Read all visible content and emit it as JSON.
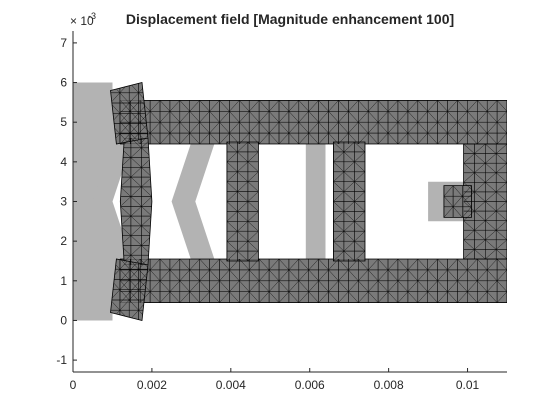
{
  "chart_data": {
    "type": "fem-mesh",
    "title": "Displacement field [Magnitude enhancement 100]",
    "x_ticks": [
      "0",
      "0.002",
      "0.004",
      "0.006",
      "0.008",
      "0.01"
    ],
    "y_ticks": [
      "-1",
      "0",
      "1",
      "2",
      "3",
      "4",
      "5",
      "6",
      "7"
    ],
    "y_exponent_base": "× 10",
    "y_exponent_power": "-3",
    "xlim": [
      0,
      0.011
    ],
    "ylim": [
      -1.3,
      7.3
    ],
    "y_scale": 0.001,
    "colors": {
      "undeformed": "#b3b3b3",
      "deformed_body": "#7a7a7a",
      "mesh_lines": "#000000",
      "axes": "#262626"
    },
    "undeformed_shapes": [
      {
        "name": "left-bar",
        "points": [
          [
            0,
            0
          ],
          [
            0.001,
            0
          ],
          [
            0.001,
            6
          ],
          [
            0,
            6
          ]
        ]
      },
      {
        "name": "top-rail",
        "points": [
          [
            0.001,
            4.5
          ],
          [
            0.011,
            4.5
          ],
          [
            0.011,
            5.5
          ],
          [
            0.001,
            5.5
          ]
        ]
      },
      {
        "name": "bottom-rail",
        "points": [
          [
            0.001,
            1.5
          ],
          [
            0.011,
            1.5
          ],
          [
            0.011,
            0.5
          ],
          [
            0.001,
            0.5
          ]
        ]
      },
      {
        "name": "arch-left",
        "points": [
          [
            0.001,
            4.5
          ],
          [
            0.0015,
            4.5
          ],
          [
            0.001,
            3.0
          ],
          [
            0.0015,
            1.5
          ],
          [
            0.001,
            1.5
          ],
          [
            0.0005,
            3.0
          ]
        ]
      },
      {
        "name": "arch-mid",
        "points": [
          [
            0.003,
            4.5
          ],
          [
            0.0036,
            4.5
          ],
          [
            0.0031,
            3.0
          ],
          [
            0.0036,
            1.5
          ],
          [
            0.003,
            1.5
          ],
          [
            0.0025,
            3.0
          ]
        ]
      },
      {
        "name": "slab-1",
        "points": [
          [
            0.0039,
            1.5
          ],
          [
            0.0047,
            1.5
          ],
          [
            0.0047,
            4.5
          ],
          [
            0.0039,
            4.5
          ]
        ]
      },
      {
        "name": "slab-2",
        "points": [
          [
            0.0059,
            1.5
          ],
          [
            0.0064,
            1.5
          ],
          [
            0.0064,
            4.5
          ],
          [
            0.0059,
            4.5
          ]
        ]
      },
      {
        "name": "slab-3",
        "points": [
          [
            0.0066,
            1.5
          ],
          [
            0.0074,
            1.5
          ],
          [
            0.0074,
            4.5
          ],
          [
            0.0066,
            4.5
          ]
        ]
      },
      {
        "name": "right-frame",
        "points": [
          [
            0.01,
            1.5
          ],
          [
            0.011,
            1.5
          ],
          [
            0.011,
            4.5
          ],
          [
            0.01,
            4.5
          ]
        ]
      },
      {
        "name": "stub",
        "points": [
          [
            0.009,
            2.5
          ],
          [
            0.0101,
            2.5
          ],
          [
            0.0101,
            3.5
          ],
          [
            0.009,
            3.5
          ]
        ]
      }
    ],
    "deformed_shapes": [
      {
        "name": "frame-top",
        "points": [
          [
            0.0012,
            4.45
          ],
          [
            0.011,
            4.45
          ],
          [
            0.011,
            5.55
          ],
          [
            0.0012,
            5.55
          ]
        ]
      },
      {
        "name": "frame-bottom",
        "points": [
          [
            0.0012,
            1.55
          ],
          [
            0.011,
            1.55
          ],
          [
            0.011,
            0.45
          ],
          [
            0.0012,
            0.45
          ]
        ]
      },
      {
        "name": "frame-right",
        "points": [
          [
            0.0099,
            1.55
          ],
          [
            0.011,
            1.55
          ],
          [
            0.011,
            4.45
          ],
          [
            0.0099,
            4.45
          ]
        ]
      },
      {
        "name": "lens-left",
        "points": [
          [
            0.0013,
            4.6
          ],
          [
            0.0019,
            4.6
          ],
          [
            0.002,
            3.0
          ],
          [
            0.0019,
            1.4
          ],
          [
            0.0013,
            1.4
          ],
          [
            0.0012,
            3.0
          ]
        ]
      },
      {
        "name": "lens-top-block",
        "points": [
          [
            0.00095,
            5.8
          ],
          [
            0.00175,
            6.0
          ],
          [
            0.0019,
            4.6
          ],
          [
            0.0011,
            4.45
          ]
        ]
      },
      {
        "name": "lens-bottom-block",
        "points": [
          [
            0.00095,
            0.2
          ],
          [
            0.00175,
            0.0
          ],
          [
            0.0019,
            1.4
          ],
          [
            0.0011,
            1.55
          ]
        ]
      },
      {
        "name": "block-1",
        "points": [
          [
            0.0039,
            1.5
          ],
          [
            0.0047,
            1.5
          ],
          [
            0.0047,
            4.5
          ],
          [
            0.0039,
            4.5
          ]
        ]
      },
      {
        "name": "block-2",
        "points": [
          [
            0.0066,
            1.5
          ],
          [
            0.0074,
            1.5
          ],
          [
            0.0074,
            4.5
          ],
          [
            0.0066,
            4.5
          ]
        ]
      },
      {
        "name": "stub-deformed",
        "points": [
          [
            0.0094,
            2.6
          ],
          [
            0.0101,
            2.6
          ],
          [
            0.0101,
            3.4
          ],
          [
            0.0094,
            3.4
          ]
        ]
      }
    ]
  }
}
